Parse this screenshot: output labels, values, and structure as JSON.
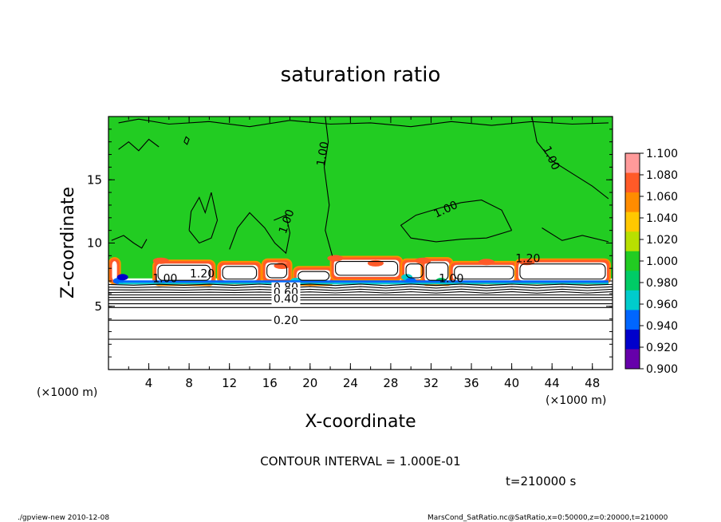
{
  "chart_data": {
    "type": "heatmap",
    "title": "saturation ratio",
    "xlabel": "X-coordinate",
    "ylabel": "Z-coordinate",
    "x_unit_note": "(×1000 m)",
    "y_unit_note": "(×1000 m)",
    "xlim": [
      0,
      50
    ],
    "ylim": [
      0,
      20
    ],
    "x_ticks": [
      4,
      8,
      12,
      16,
      20,
      24,
      28,
      32,
      36,
      40,
      44,
      48
    ],
    "y_ticks": [
      5,
      10,
      15
    ],
    "colorbar": {
      "levels": [
        "1.100",
        "1.080",
        "1.060",
        "1.040",
        "1.020",
        "1.000",
        "0.980",
        "0.960",
        "0.940",
        "0.920",
        "0.900"
      ],
      "colors": [
        "#ffffff",
        "#ff9a9a",
        "#ff5a28",
        "#ff8c00",
        "#ffc800",
        "#b8e000",
        "#22cc22",
        "#00cc66",
        "#00cccc",
        "#0066ff",
        "#0000cc",
        "#6600aa"
      ]
    },
    "field_summary": {
      "upper_layer": {
        "value": "1.00",
        "color": "#22cc22",
        "z_range": [
          9,
          20
        ]
      },
      "cloud_layer": {
        "value": "1.20",
        "z_range": [
          6.5,
          9
        ]
      },
      "lower_layer_contours": [
        "0.20",
        "0.40",
        "0.60",
        "0.80"
      ]
    },
    "contour_labels": [
      "1.00",
      "1.00",
      "1.00",
      "1.00",
      "1.00",
      "1.00",
      "1.20",
      "1.20",
      "0.80",
      "0.60",
      "0.40",
      "0.20"
    ]
  },
  "notes": {
    "contour_interval": "CONTOUR INTERVAL = 1.000E-01",
    "time": "t=210000 s"
  },
  "footer": {
    "left": "./gpview-new   2010-12-08",
    "right": "MarsCond_SatRatio.nc@SatRatio,x=0:50000,z=0:20000,t=210000"
  }
}
